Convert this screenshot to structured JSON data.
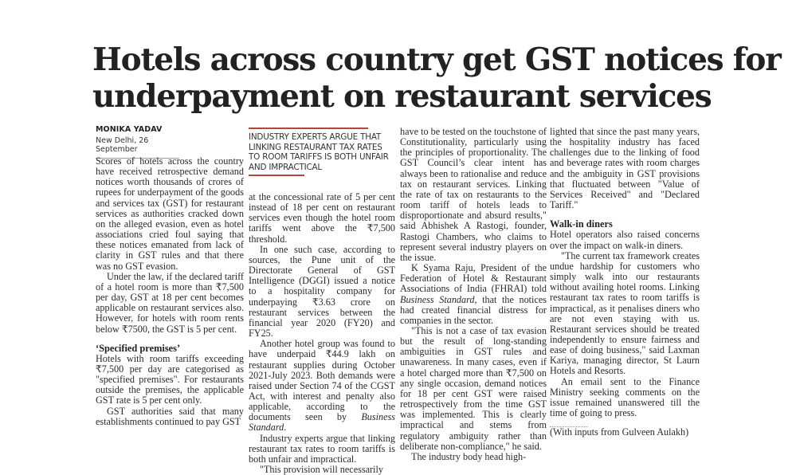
{
  "headline": [
    "Hotels across country get GST notices for",
    "underpayment on restaurant services"
  ],
  "byline": {
    "author": "MONIKA YADAV",
    "dateline": "New Delhi, 26 September"
  },
  "pullquote": "INDUSTRY EXPERTS ARGUE THAT LINKING RESTAURANT TAX RATES TO ROOM TARIFFS IS BOTH UNFAIR AND IMPRACTICAL",
  "accent_color": "#b3443f",
  "columns": {
    "c1": {
      "p0": "Scores of hotels across the country have received retrospective demand notices worth thousands of crores of rupees for underpayment of the goods and services tax (GST) for restaurant services as authorities cracked down on the alleged evasion, even as hotel associations cried foul saying that these notices emanated from lack of clarity in GST rules and that there was no GST evasion.",
      "p1": "Under the law, if the declared tariff of a hotel room is more than ₹7,500 per day, GST at 18 per cent becomes applicable on restaurant services also. However, for hotels with room rents below ₹7500, the GST is 5 per cent.",
      "h1": "‘Specified premises’",
      "p2": "Hotels with room tariffs exceeding ₹7,500 per day are categorised as \"specified premises\". For restaurants outside the premises, the applicable GST rate is 5 per cent only.",
      "p3": "GST authorities said that many establishments continued to pay GST"
    },
    "c2": {
      "p0": "at the concessional rate of 5 per cent instead of 18 per cent on restaurant services even though the hotel room tariffs went above the ₹7,500 threshold.",
      "p1": "In one such case, according to sources, the Pune unit of the Directorate General of GST Intelligence (DGGI) issued a notice to a hospitality company for underpaying ₹3.63 crore on restaurant services between the financial year 2020 (FY20) and FY25.",
      "p2a": "Another hotel group was found to have underpaid ₹44.9 lakh on restaurant supplies during October 2021-July 2023. Both demands were raised under Section 74 of the CGST Act, with interest and penalty also applicable, according to the documents seen by ",
      "p2b": "Business Standard",
      "p2c": ".",
      "p3": "Industry experts argue that linking restaurant tax rates to room tariffs is both unfair and impractical.",
      "p4": "\"This provision will necessarily"
    },
    "c3": {
      "p0": "have to be tested on the touchstone of Constitutionality, particularly using the principles of proportionality. The GST Council’s clear intent has always been to rationalise and reduce tax on restaurant services. Linking the rate of tax on restaurants to the room tariff of hotels leads to disproportionate and absurd results,\" said Abhishek A Rastogi, founder, Rastogi Chambers, who claims to represent several industry players on the issue.",
      "p1a": "K Syama Raju, President of the Federation of Hotel & Restaurant Associations of India (FHRAI) told ",
      "p1b": "Business Standard",
      "p1c": ", that the notices had created financial distress for companies in the sector.",
      "p2": "\"This is not a case of tax evasion but the result of long-standing ambiguities in GST rules and unawareness. In many cases, even if a hotel charged more than ₹7,500 on any single occasion, demand notices for 18 per cent GST were raised retrospectively from the time GST was implemented. This is clearly impractical and stems from regulatory ambiguity rather than deliberate non-compliance,\" he said.",
      "p3": "The industry body head high-"
    },
    "c4": {
      "p0": "lighted that since the past many years, the hospitality industry has faced challenges due to the linking of food and beverage rates with room charges and the ambiguity in GST provisions that fluctuated between \"Value of Services Received\" and \"Declared Tariff.\"",
      "h1": "Walk-in diners",
      "p1": "Hotel operators also raised concerns over the impact on walk-in diners.",
      "p2": "\"The current tax framework creates undue hardship for customers who simply walk into our restaurants without availing hotel rooms. Linking restaurant tax rates to room tariffs is impractical, as it penalises diners who are not even staying with us. Restaurant services should be treated independently to ensure fairness and ease of doing business,\" said Laxman Kariya, managing director, St Laurn Hotels and Resorts.",
      "p3": "An email sent to the Finance Ministry seeking comments on the issue remained unanswered till the time of going to press.",
      "credit": "(With inputs from Gulveen Aulakh)"
    }
  }
}
